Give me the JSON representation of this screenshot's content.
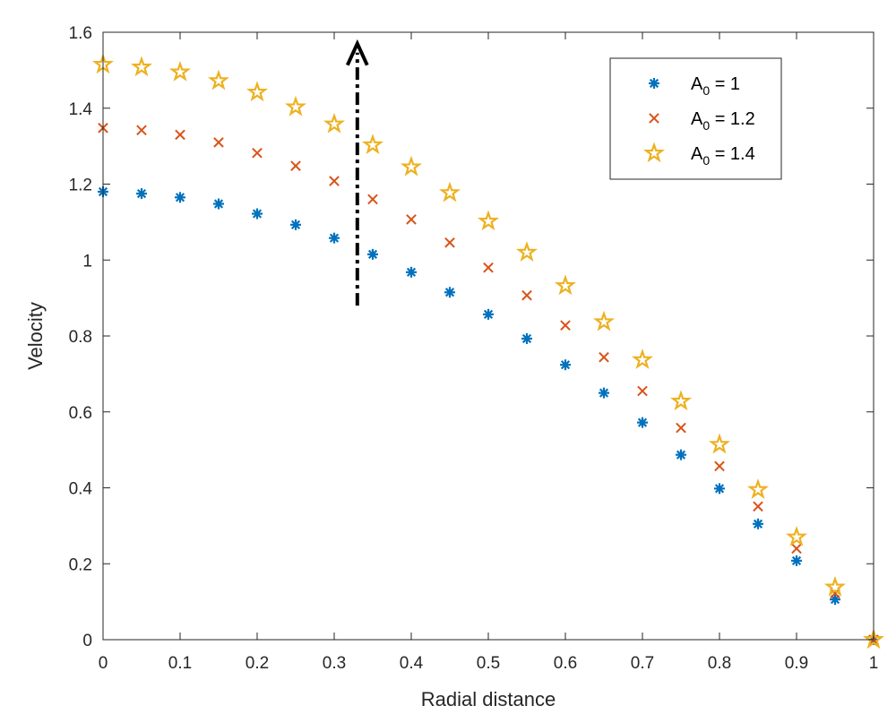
{
  "chart_data": {
    "type": "scatter",
    "xlabel": "Radial distance",
    "ylabel": "Velocity",
    "xlim": [
      0,
      1
    ],
    "ylim": [
      0,
      1.6
    ],
    "xticks": [
      0,
      0.1,
      0.2,
      0.3,
      0.4,
      0.5,
      0.6,
      0.7,
      0.8,
      0.9,
      1
    ],
    "xtick_labels": [
      "0",
      "0.1",
      "0.2",
      "0.3",
      "0.4",
      "0.5",
      "0.6",
      "0.7",
      "0.8",
      "0.9",
      "1"
    ],
    "yticks": [
      0,
      0.2,
      0.4,
      0.6,
      0.8,
      1,
      1.2,
      1.4,
      1.6
    ],
    "ytick_labels": [
      "0",
      "0.2",
      "0.4",
      "0.6",
      "0.8",
      "1",
      "1.2",
      "1.4",
      "1.6"
    ],
    "grid": false,
    "legend_position": "top-right",
    "x": [
      0,
      0.05,
      0.1,
      0.15,
      0.2,
      0.25,
      0.3,
      0.35,
      0.4,
      0.45,
      0.5,
      0.55,
      0.6,
      0.65,
      0.7,
      0.75,
      0.8,
      0.85,
      0.9,
      0.95,
      1
    ],
    "series": [
      {
        "name": "A0 = 1",
        "legend_base": "A",
        "legend_sub": "0",
        "legend_rest": " = 1",
        "marker": "asterisk",
        "color": "#0072BD",
        "values": [
          1.18,
          1.175,
          1.165,
          1.148,
          1.122,
          1.093,
          1.058,
          1.015,
          0.968,
          0.915,
          0.857,
          0.793,
          0.724,
          0.65,
          0.572,
          0.487,
          0.398,
          0.305,
          0.208,
          0.106,
          0.0
        ]
      },
      {
        "name": "A0 = 1.2",
        "legend_base": "A",
        "legend_sub": "0",
        "legend_rest": " = 1.2",
        "marker": "x",
        "color": "#D95319",
        "values": [
          1.348,
          1.342,
          1.33,
          1.31,
          1.282,
          1.248,
          1.208,
          1.16,
          1.107,
          1.046,
          0.98,
          0.907,
          0.828,
          0.744,
          0.655,
          0.558,
          0.457,
          0.351,
          0.24,
          0.122,
          0.0
        ]
      },
      {
        "name": "A0 = 1.4",
        "legend_base": "A",
        "legend_sub": "0",
        "legend_rest": " = 1.4",
        "marker": "pentagram",
        "color": "#EDB120",
        "values": [
          1.515,
          1.508,
          1.495,
          1.472,
          1.442,
          1.403,
          1.358,
          1.303,
          1.245,
          1.177,
          1.102,
          1.02,
          0.932,
          0.837,
          0.737,
          0.628,
          0.514,
          0.395,
          0.27,
          0.138,
          0.0
        ]
      }
    ],
    "arrow": {
      "x": 0.33,
      "y_start": 0.88,
      "y_end": 1.57,
      "style": "dash-dot",
      "color": "#000000"
    }
  }
}
